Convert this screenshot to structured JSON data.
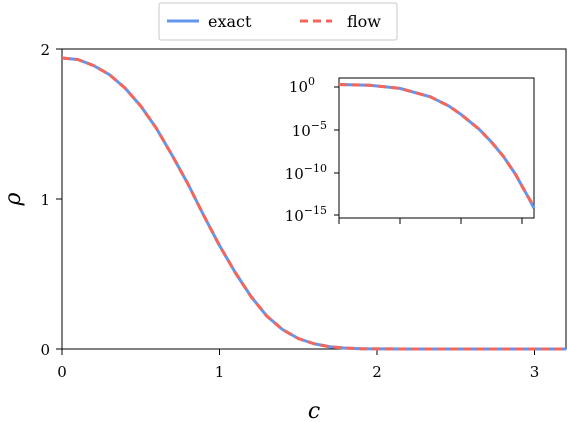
{
  "chart_data": [
    {
      "type": "line",
      "xlabel": "c",
      "ylabel": "ρ",
      "xlim": [
        0,
        3.2
      ],
      "ylim": [
        0,
        2
      ],
      "x_ticks": [
        "0",
        "1",
        "2",
        "3"
      ],
      "y_ticks": [
        "0",
        "1",
        "2"
      ],
      "legend": {
        "placement": "top-center",
        "entries": [
          "exact",
          "flow"
        ]
      },
      "series": [
        {
          "name": "exact",
          "color": "#6495ed",
          "style": "solid",
          "x": [
            0,
            0.1,
            0.2,
            0.3,
            0.4,
            0.5,
            0.6,
            0.7,
            0.8,
            0.9,
            1.0,
            1.1,
            1.2,
            1.3,
            1.4,
            1.5,
            1.6,
            1.7,
            1.8,
            1.9,
            2.0,
            2.2,
            2.4,
            2.6,
            2.8,
            3.0,
            3.2
          ],
          "y": [
            1.94,
            1.93,
            1.89,
            1.83,
            1.74,
            1.62,
            1.47,
            1.29,
            1.1,
            0.89,
            0.69,
            0.51,
            0.35,
            0.22,
            0.13,
            0.07,
            0.035,
            0.015,
            0.006,
            0.002,
            0.001,
            0.0,
            0.0,
            0.0,
            0.0,
            0.0,
            0.0
          ]
        },
        {
          "name": "flow",
          "color": "#f4665a",
          "style": "dashed",
          "x": [
            0,
            0.1,
            0.2,
            0.3,
            0.4,
            0.5,
            0.6,
            0.7,
            0.8,
            0.9,
            1.0,
            1.1,
            1.2,
            1.3,
            1.4,
            1.5,
            1.6,
            1.7,
            1.8,
            1.9,
            2.0,
            2.2,
            2.4,
            2.6,
            2.8,
            3.0,
            3.2
          ],
          "y": [
            1.94,
            1.93,
            1.89,
            1.83,
            1.74,
            1.62,
            1.47,
            1.29,
            1.1,
            0.89,
            0.69,
            0.51,
            0.35,
            0.22,
            0.13,
            0.07,
            0.035,
            0.015,
            0.006,
            0.002,
            0.001,
            0.0,
            0.0,
            0.0,
            0.0,
            0.0,
            0.0
          ]
        }
      ]
    },
    {
      "type": "line",
      "inset": true,
      "yscale": "log",
      "xlim": [
        0,
        3.2
      ],
      "ylim_log10": [
        -15,
        1
      ],
      "y_ticks": [
        {
          "base": "10",
          "exp": "0",
          "value_log10": 0
        },
        {
          "base": "10",
          "exp": "−5",
          "value_log10": -5
        },
        {
          "base": "10",
          "exp": "−10",
          "value_log10": -10
        },
        {
          "base": "10",
          "exp": "−15",
          "value_log10": -15
        }
      ],
      "x_ticks_unlabeled": [
        0,
        1,
        2,
        3
      ],
      "series": [
        {
          "name": "exact",
          "color": "#6495ed",
          "style": "solid",
          "x": [
            0,
            0.5,
            1.0,
            1.5,
            1.8,
            2.0,
            2.3,
            2.5,
            2.7,
            2.9,
            3.0,
            3.1,
            3.2
          ],
          "log10_y": [
            0.29,
            0.21,
            -0.16,
            -1.15,
            -2.22,
            -3.2,
            -4.95,
            -6.43,
            -8.15,
            -10.27,
            -11.57,
            -12.84,
            -14.2
          ]
        },
        {
          "name": "flow",
          "color": "#f4665a",
          "style": "dashed",
          "x": [
            0,
            0.5,
            1.0,
            1.5,
            1.8,
            2.0,
            2.3,
            2.5,
            2.7,
            2.9,
            3.0,
            3.1,
            3.2
          ],
          "log10_y": [
            0.29,
            0.21,
            -0.16,
            -1.15,
            -2.22,
            -3.2,
            -4.95,
            -6.43,
            -8.15,
            -10.27,
            -11.57,
            -12.84,
            -13.95
          ]
        }
      ]
    }
  ]
}
